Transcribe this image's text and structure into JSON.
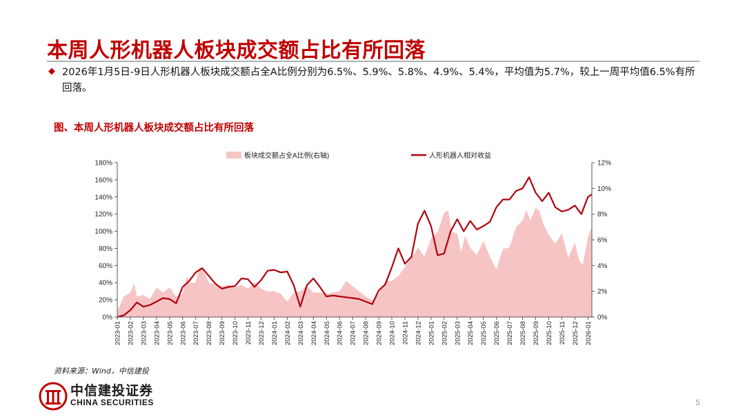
{
  "page": {
    "title": "本周人形机器人板块成交额占比有所回落",
    "summary": "2026年1月5日-9日人形机器人板块成交额占全A比例分别为6.5%、5.9%、5.8%、4.9%、5.4%，平均值为5.7%，较上一周平均值6.5%有所回落。",
    "figure_title": "图、本周人形机器人板块成交额占比有所回落",
    "source": "资料来源：Wind，中信建投",
    "logo_cn": "中信建投证券",
    "logo_en": "CHINA SECURITIES",
    "page_number": "5"
  },
  "colors": {
    "accent": "#c00000",
    "line": "#b0000c",
    "area": "#f6c4c4"
  },
  "chart_data": {
    "type": "line",
    "title": "",
    "legend_position": "top",
    "grid": false,
    "x_ticks": [
      "2023-01",
      "2023-02",
      "2023-03",
      "2023-04",
      "2023-05",
      "2023-06",
      "2023-07",
      "2023-08",
      "2023-09",
      "2023-10",
      "2023-11",
      "2023-12",
      "2024-01",
      "2024-02",
      "2024-03",
      "2024-04",
      "2024-05",
      "2024-06",
      "2024-07",
      "2024-08",
      "2024-09",
      "2024-10",
      "2024-11",
      "2024-12",
      "2025-01",
      "2025-02",
      "2025-03",
      "2025-04",
      "2025-05",
      "2025-06",
      "2025-07",
      "2025-08",
      "2025-09",
      "2025-10",
      "2025-11",
      "2025-12",
      "2026-01"
    ],
    "x_range": [
      0,
      36.3
    ],
    "y_left": {
      "min": 0,
      "max": 180,
      "step": 20,
      "unit": "%"
    },
    "y_right": {
      "min": 0,
      "max": 12,
      "step": 2,
      "unit": "%"
    },
    "series": [
      {
        "name": "板块成交额占全A比例(右轴)",
        "type": "area",
        "axis": "right",
        "x": [
          0,
          0.5,
          1,
          1.3,
          1.5,
          2,
          2.5,
          3,
          3.5,
          4,
          4.5,
          5,
          5.3,
          5.6,
          6,
          6.3,
          6.6,
          7,
          7.5,
          8,
          8.5,
          9,
          9.5,
          10,
          10.5,
          11,
          11.5,
          12,
          12.5,
          13,
          13.5,
          14,
          14.5,
          15,
          15.5,
          16,
          16.5,
          17,
          17.5,
          18,
          18.5,
          19,
          19.5,
          20,
          20.5,
          21,
          21.5,
          22,
          22.5,
          23,
          23.5,
          24,
          24.5,
          25,
          25.3,
          25.6,
          26,
          26.3,
          26.6,
          27,
          27.5,
          28,
          28.5,
          29,
          29.5,
          30,
          30.5,
          31,
          31.3,
          31.6,
          32,
          32.3,
          32.6,
          33,
          33.5,
          34,
          34.5,
          35,
          35.3,
          35.6,
          36,
          36.3
        ],
        "values": [
          0.5,
          1.6,
          1.9,
          2.6,
          1.6,
          1.7,
          1.4,
          2.3,
          1.9,
          2.3,
          1.6,
          1.8,
          3.1,
          2.6,
          2.7,
          3.9,
          3.6,
          2.7,
          2.5,
          2.4,
          2.5,
          2.3,
          2.5,
          2.2,
          2.7,
          2.2,
          2.0,
          2.0,
          1.8,
          1.2,
          1.9,
          2.0,
          2.4,
          1.9,
          1.9,
          1.8,
          1.9,
          2.0,
          2.8,
          2.4,
          2.0,
          1.6,
          1.3,
          1.8,
          2.8,
          2.8,
          3.2,
          3.9,
          4.6,
          5.4,
          4.7,
          6.1,
          6.6,
          8.1,
          8.3,
          6.6,
          6.5,
          5.0,
          6.3,
          5.4,
          4.8,
          5.9,
          4.7,
          3.7,
          5.3,
          5.4,
          7.0,
          7.5,
          8.3,
          7.5,
          8.5,
          8.2,
          7.2,
          6.4,
          5.7,
          6.5,
          4.6,
          5.8,
          4.5,
          4.0,
          6.2,
          7.0
        ]
      },
      {
        "name": "人形机器人相对收益",
        "type": "line",
        "axis": "left",
        "x": [
          0,
          0.5,
          1,
          1.5,
          2,
          2.5,
          3,
          3.5,
          4,
          4.5,
          5,
          5.5,
          6,
          6.5,
          7,
          7.5,
          8,
          8.5,
          9,
          9.5,
          10,
          10.5,
          11,
          11.5,
          12,
          12.5,
          13,
          13.5,
          14,
          14.5,
          15,
          15.5,
          16,
          16.5,
          17,
          17.5,
          18,
          18.5,
          19,
          19.5,
          20,
          20.5,
          21,
          21.5,
          22,
          22.5,
          23,
          23.5,
          24,
          24.5,
          25,
          25.5,
          26,
          26.5,
          27,
          27.5,
          28,
          28.5,
          29,
          29.5,
          30,
          30.5,
          31,
          31.5,
          32,
          32.5,
          33,
          33.5,
          34,
          34.5,
          35,
          35.5,
          36,
          36.3
        ],
        "values": [
          0,
          2,
          8,
          17,
          12,
          14,
          18,
          22,
          21,
          16,
          35,
          42,
          52,
          57,
          48,
          39,
          33,
          35,
          36,
          45,
          44,
          35,
          43,
          54,
          55,
          52,
          53,
          37,
          12,
          37,
          45,
          35,
          24,
          25,
          24,
          23,
          22,
          21,
          18,
          15,
          31,
          38,
          58,
          80,
          62,
          70,
          109,
          124,
          106,
          72,
          74,
          100,
          114,
          100,
          112,
          102,
          106,
          111,
          128,
          137,
          137,
          147,
          150,
          163,
          145,
          135,
          145,
          128,
          123,
          125,
          130,
          120,
          140,
          143
        ]
      }
    ]
  }
}
